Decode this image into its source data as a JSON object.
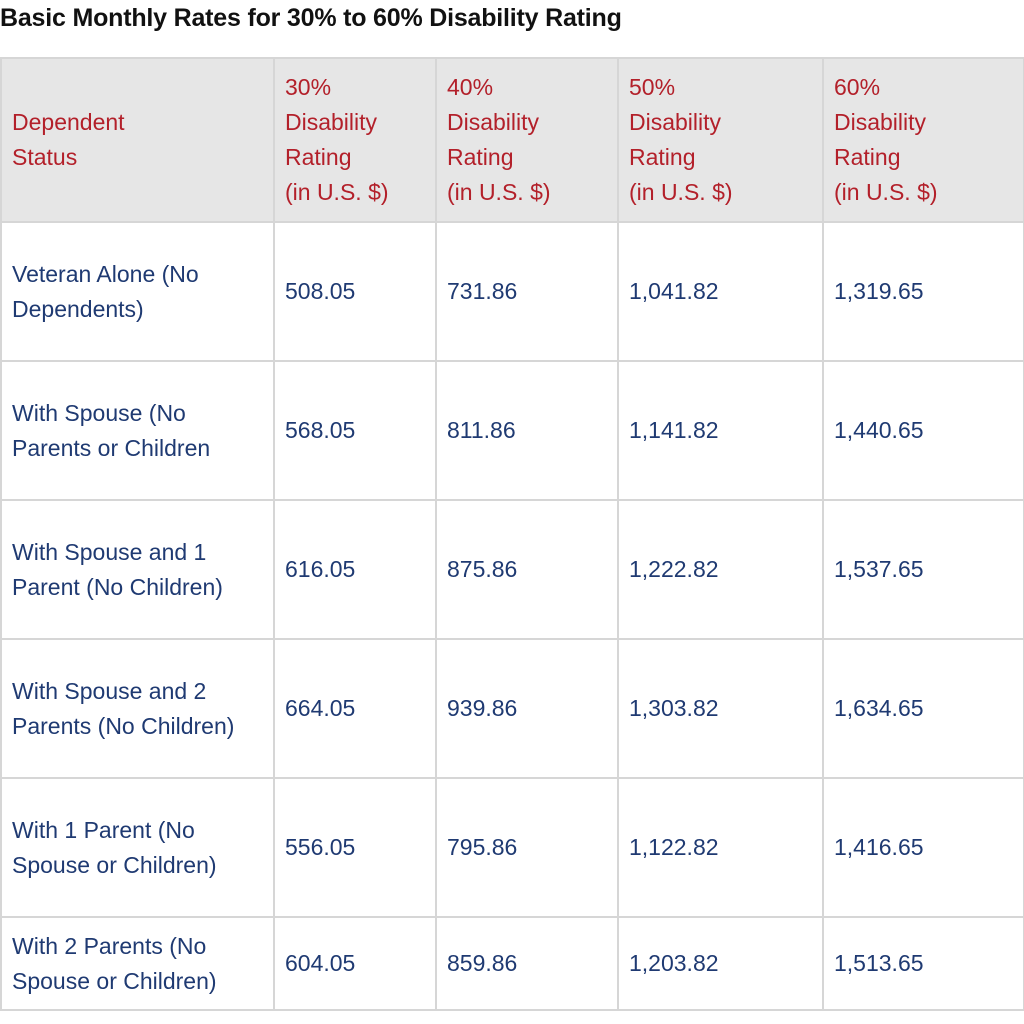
{
  "title": "Basic Monthly Rates for 30% to 60% Disability Rating",
  "colors": {
    "header_text": "#b3202a",
    "body_text": "#1f3a72",
    "header_bg": "#e6e6e6",
    "border": "#d6d6d6"
  },
  "table": {
    "headers": [
      {
        "lines": [
          "Dependent",
          "Status"
        ]
      },
      {
        "lines": [
          "30%",
          "Disability",
          "Rating",
          "(in U.S. $)"
        ]
      },
      {
        "lines": [
          "40%",
          "Disability",
          "Rating",
          "(in U.S. $)"
        ]
      },
      {
        "lines": [
          "50%",
          "Disability",
          "Rating",
          "(in U.S. $)"
        ]
      },
      {
        "lines": [
          "60%",
          "Disability",
          "Rating",
          "(in U.S. $)"
        ]
      }
    ],
    "rows": [
      {
        "status": "Veteran Alone (No Dependents)",
        "r30": "508.05",
        "r40": "731.86",
        "r50": "1,041.82",
        "r60": "1,319.65"
      },
      {
        "status": "With Spouse (No Parents or Children",
        "r30": "568.05",
        "r40": "811.86",
        "r50": "1,141.82",
        "r60": "1,440.65"
      },
      {
        "status": "With Spouse and 1 Parent (No Children)",
        "r30": "616.05",
        "r40": "875.86",
        "r50": "1,222.82",
        "r60": "1,537.65"
      },
      {
        "status": "With Spouse and 2 Parents (No Children)",
        "r30": "664.05",
        "r40": "939.86",
        "r50": "1,303.82",
        "r60": "1,634.65"
      },
      {
        "status": "With 1 Parent (No Spouse or Children)",
        "r30": "556.05",
        "r40": "795.86",
        "r50": "1,122.82",
        "r60": "1,416.65"
      },
      {
        "status": "With 2 Parents (No Spouse or Children)",
        "r30": "604.05",
        "r40": "859.86",
        "r50": "1,203.82",
        "r60": "1,513.65"
      }
    ]
  }
}
